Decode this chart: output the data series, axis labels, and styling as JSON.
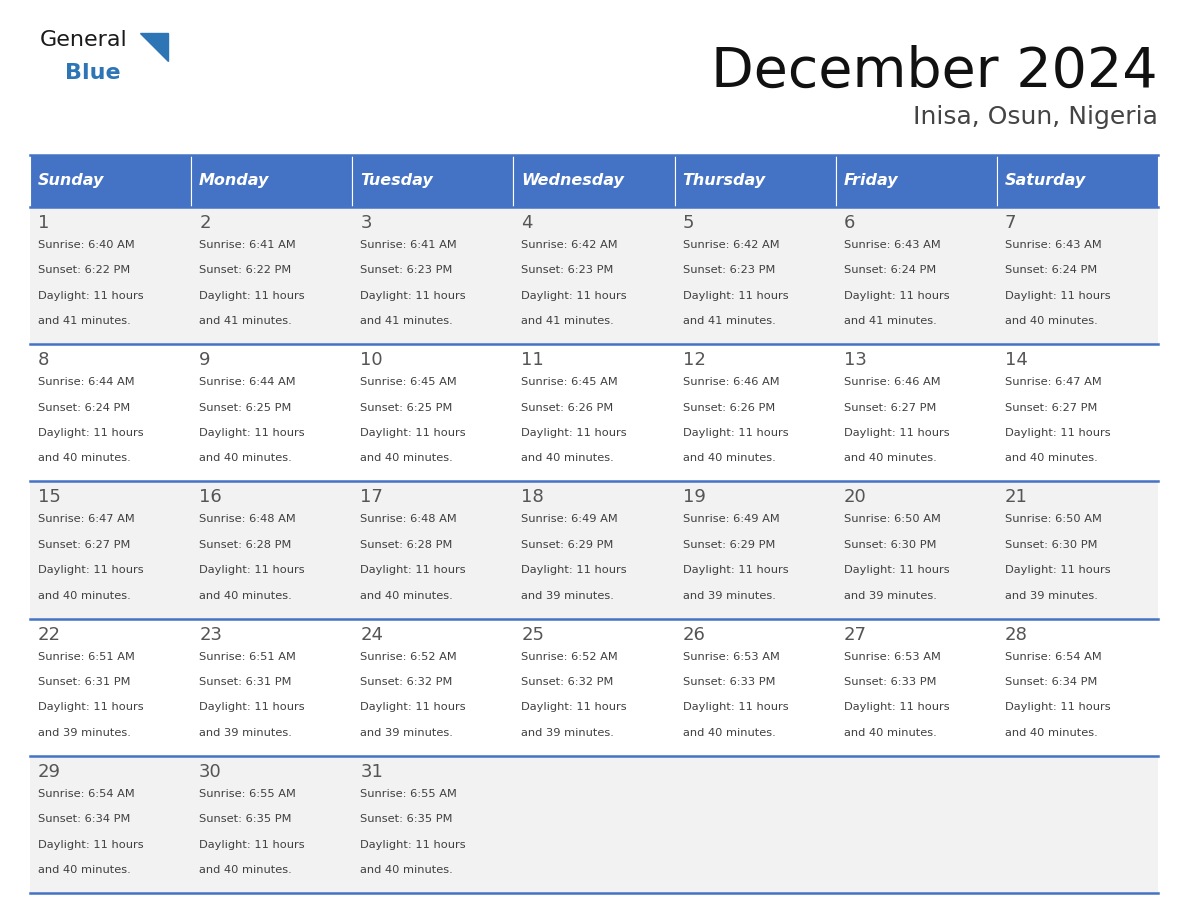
{
  "title": "December 2024",
  "subtitle": "Inisa, Osun, Nigeria",
  "header_bg_color": "#4472C4",
  "header_text_color": "#FFFFFF",
  "header_days": [
    "Sunday",
    "Monday",
    "Tuesday",
    "Wednesday",
    "Thursday",
    "Friday",
    "Saturday"
  ],
  "row_bg_even": "#F2F2F2",
  "row_bg_odd": "#FFFFFF",
  "day_number_color": "#555555",
  "text_color": "#404040",
  "border_color": "#4472C4",
  "logo_general_color": "#1a1a1a",
  "logo_blue_color": "#2E75B6",
  "logo_triangle_color": "#2E75B6",
  "weeks": [
    [
      {
        "day": 1,
        "sunrise": "6:40 AM",
        "sunset": "6:22 PM",
        "daylight": "11 hours and 41 minutes."
      },
      {
        "day": 2,
        "sunrise": "6:41 AM",
        "sunset": "6:22 PM",
        "daylight": "11 hours and 41 minutes."
      },
      {
        "day": 3,
        "sunrise": "6:41 AM",
        "sunset": "6:23 PM",
        "daylight": "11 hours and 41 minutes."
      },
      {
        "day": 4,
        "sunrise": "6:42 AM",
        "sunset": "6:23 PM",
        "daylight": "11 hours and 41 minutes."
      },
      {
        "day": 5,
        "sunrise": "6:42 AM",
        "sunset": "6:23 PM",
        "daylight": "11 hours and 41 minutes."
      },
      {
        "day": 6,
        "sunrise": "6:43 AM",
        "sunset": "6:24 PM",
        "daylight": "11 hours and 41 minutes."
      },
      {
        "day": 7,
        "sunrise": "6:43 AM",
        "sunset": "6:24 PM",
        "daylight": "11 hours and 40 minutes."
      }
    ],
    [
      {
        "day": 8,
        "sunrise": "6:44 AM",
        "sunset": "6:24 PM",
        "daylight": "11 hours and 40 minutes."
      },
      {
        "day": 9,
        "sunrise": "6:44 AM",
        "sunset": "6:25 PM",
        "daylight": "11 hours and 40 minutes."
      },
      {
        "day": 10,
        "sunrise": "6:45 AM",
        "sunset": "6:25 PM",
        "daylight": "11 hours and 40 minutes."
      },
      {
        "day": 11,
        "sunrise": "6:45 AM",
        "sunset": "6:26 PM",
        "daylight": "11 hours and 40 minutes."
      },
      {
        "day": 12,
        "sunrise": "6:46 AM",
        "sunset": "6:26 PM",
        "daylight": "11 hours and 40 minutes."
      },
      {
        "day": 13,
        "sunrise": "6:46 AM",
        "sunset": "6:27 PM",
        "daylight": "11 hours and 40 minutes."
      },
      {
        "day": 14,
        "sunrise": "6:47 AM",
        "sunset": "6:27 PM",
        "daylight": "11 hours and 40 minutes."
      }
    ],
    [
      {
        "day": 15,
        "sunrise": "6:47 AM",
        "sunset": "6:27 PM",
        "daylight": "11 hours and 40 minutes."
      },
      {
        "day": 16,
        "sunrise": "6:48 AM",
        "sunset": "6:28 PM",
        "daylight": "11 hours and 40 minutes."
      },
      {
        "day": 17,
        "sunrise": "6:48 AM",
        "sunset": "6:28 PM",
        "daylight": "11 hours and 40 minutes."
      },
      {
        "day": 18,
        "sunrise": "6:49 AM",
        "sunset": "6:29 PM",
        "daylight": "11 hours and 39 minutes."
      },
      {
        "day": 19,
        "sunrise": "6:49 AM",
        "sunset": "6:29 PM",
        "daylight": "11 hours and 39 minutes."
      },
      {
        "day": 20,
        "sunrise": "6:50 AM",
        "sunset": "6:30 PM",
        "daylight": "11 hours and 39 minutes."
      },
      {
        "day": 21,
        "sunrise": "6:50 AM",
        "sunset": "6:30 PM",
        "daylight": "11 hours and 39 minutes."
      }
    ],
    [
      {
        "day": 22,
        "sunrise": "6:51 AM",
        "sunset": "6:31 PM",
        "daylight": "11 hours and 39 minutes."
      },
      {
        "day": 23,
        "sunrise": "6:51 AM",
        "sunset": "6:31 PM",
        "daylight": "11 hours and 39 minutes."
      },
      {
        "day": 24,
        "sunrise": "6:52 AM",
        "sunset": "6:32 PM",
        "daylight": "11 hours and 39 minutes."
      },
      {
        "day": 25,
        "sunrise": "6:52 AM",
        "sunset": "6:32 PM",
        "daylight": "11 hours and 39 minutes."
      },
      {
        "day": 26,
        "sunrise": "6:53 AM",
        "sunset": "6:33 PM",
        "daylight": "11 hours and 40 minutes."
      },
      {
        "day": 27,
        "sunrise": "6:53 AM",
        "sunset": "6:33 PM",
        "daylight": "11 hours and 40 minutes."
      },
      {
        "day": 28,
        "sunrise": "6:54 AM",
        "sunset": "6:34 PM",
        "daylight": "11 hours and 40 minutes."
      }
    ],
    [
      {
        "day": 29,
        "sunrise": "6:54 AM",
        "sunset": "6:34 PM",
        "daylight": "11 hours and 40 minutes."
      },
      {
        "day": 30,
        "sunrise": "6:55 AM",
        "sunset": "6:35 PM",
        "daylight": "11 hours and 40 minutes."
      },
      {
        "day": 31,
        "sunrise": "6:55 AM",
        "sunset": "6:35 PM",
        "daylight": "11 hours and 40 minutes."
      },
      null,
      null,
      null,
      null
    ]
  ]
}
